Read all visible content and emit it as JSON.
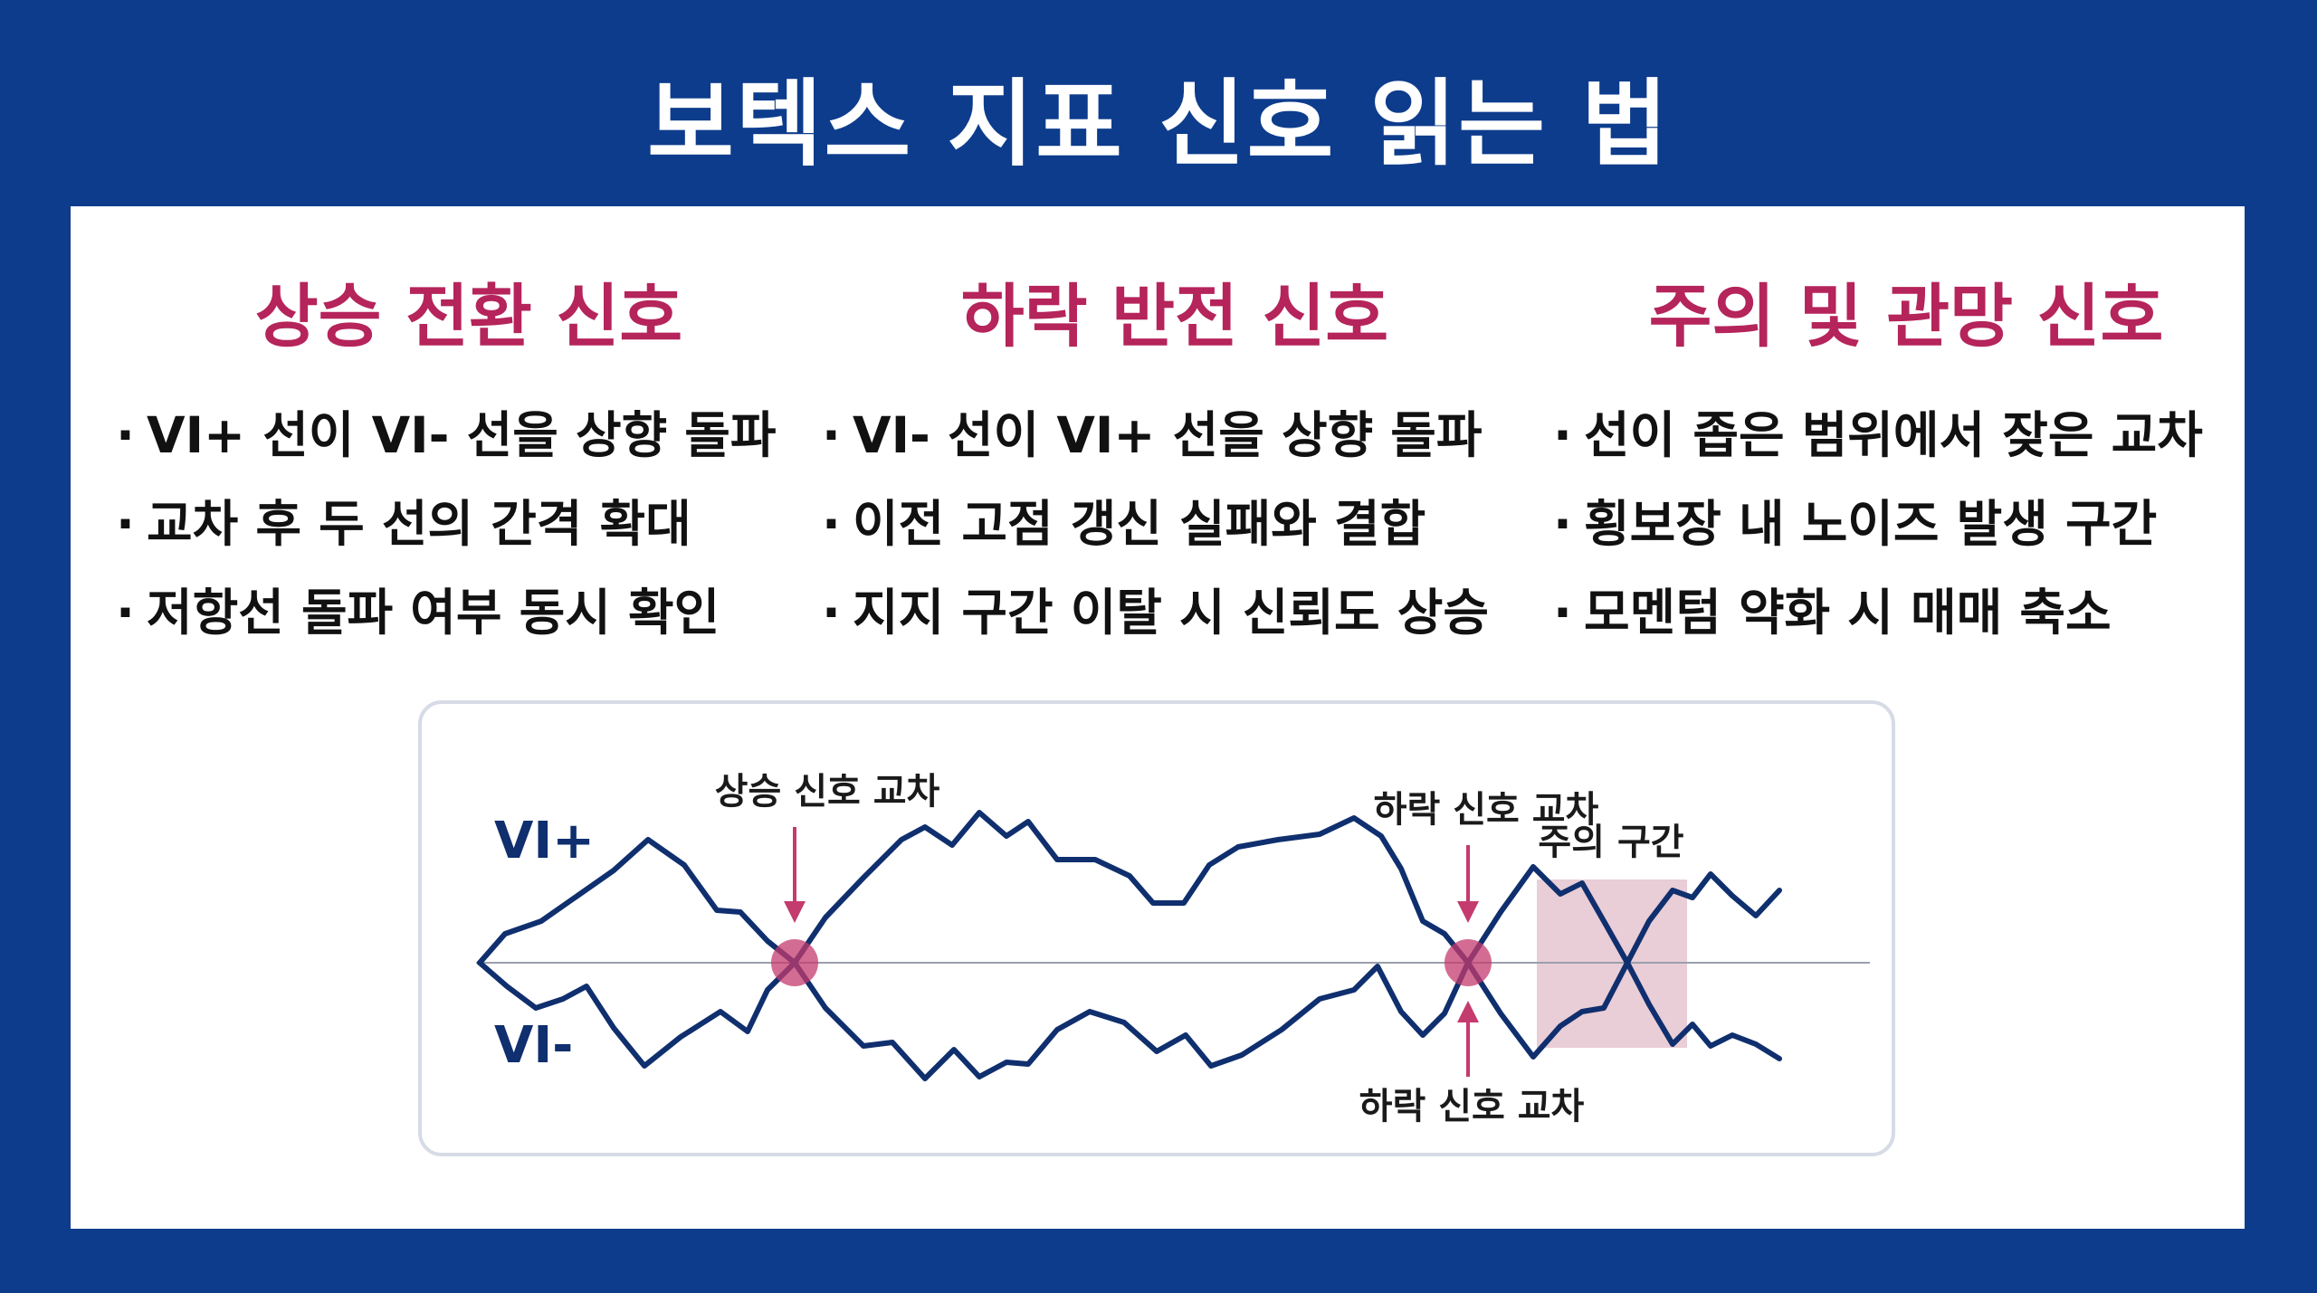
{
  "title": "보텍스 지표 신호 읽는 법",
  "columns": [
    {
      "heading": "상승 전환 신호",
      "items": [
        "VI+ 선이 VI- 선을 상향 돌파",
        "교차 후 두 선의 간격 확대",
        "저항선 돌파 여부 동시 확인"
      ]
    },
    {
      "heading": "하락 반전 신호",
      "items": [
        "VI- 선이 VI+ 선을 상향 돌파",
        "이전 고점 갱신 실패와 결합",
        "지지 구간 이탈 시 신뢰도 상승"
      ]
    },
    {
      "heading": "주의 및 관망 신호",
      "items": [
        "선이 좁은 범위에서 잦은 교차",
        "횡보장 내 노이즈 발생 구간",
        "모멘텀 약화 시 매매 축소"
      ]
    }
  ],
  "diagram": {
    "series_labels": {
      "vi_plus": "VI+",
      "vi_minus": "VI-"
    },
    "annotations": {
      "bull_cross": "상승 신호 교차",
      "bear_cross_top": "하락 신호 교차",
      "bear_cross_bottom": "하락 신호 교차",
      "caution_zone": "주의 구간"
    },
    "colors": {
      "line": "#0f2f6e",
      "marker": "#c43b6e",
      "caution_fill": "#e9cdd7",
      "axis": "#9aa0aa",
      "label_text": "#1a1a1a"
    }
  }
}
